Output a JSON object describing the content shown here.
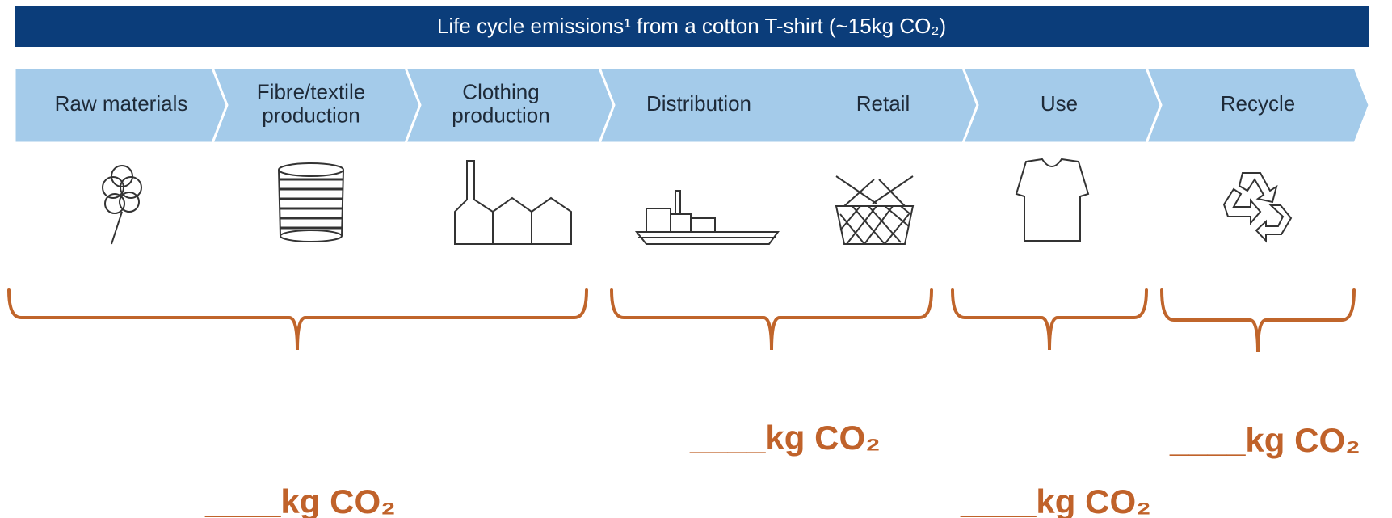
{
  "header": {
    "title": "Life cycle emissions¹ from a cotton T-shirt (~15kg CO₂)"
  },
  "stages": [
    {
      "lines": [
        "Raw materials"
      ]
    },
    {
      "lines": [
        "Fibre/textile",
        "production"
      ]
    },
    {
      "lines": [
        "Clothing",
        "production"
      ]
    },
    {
      "lines": [
        "Distribution"
      ]
    },
    {
      "lines": [
        "Retail"
      ]
    },
    {
      "lines": [
        "Use"
      ]
    },
    {
      "lines": [
        "Recycle"
      ]
    }
  ],
  "blanks": [
    "____kg CO₂",
    "____kg CO₂",
    "____kg CO₂",
    "____kg CO₂"
  ]
}
